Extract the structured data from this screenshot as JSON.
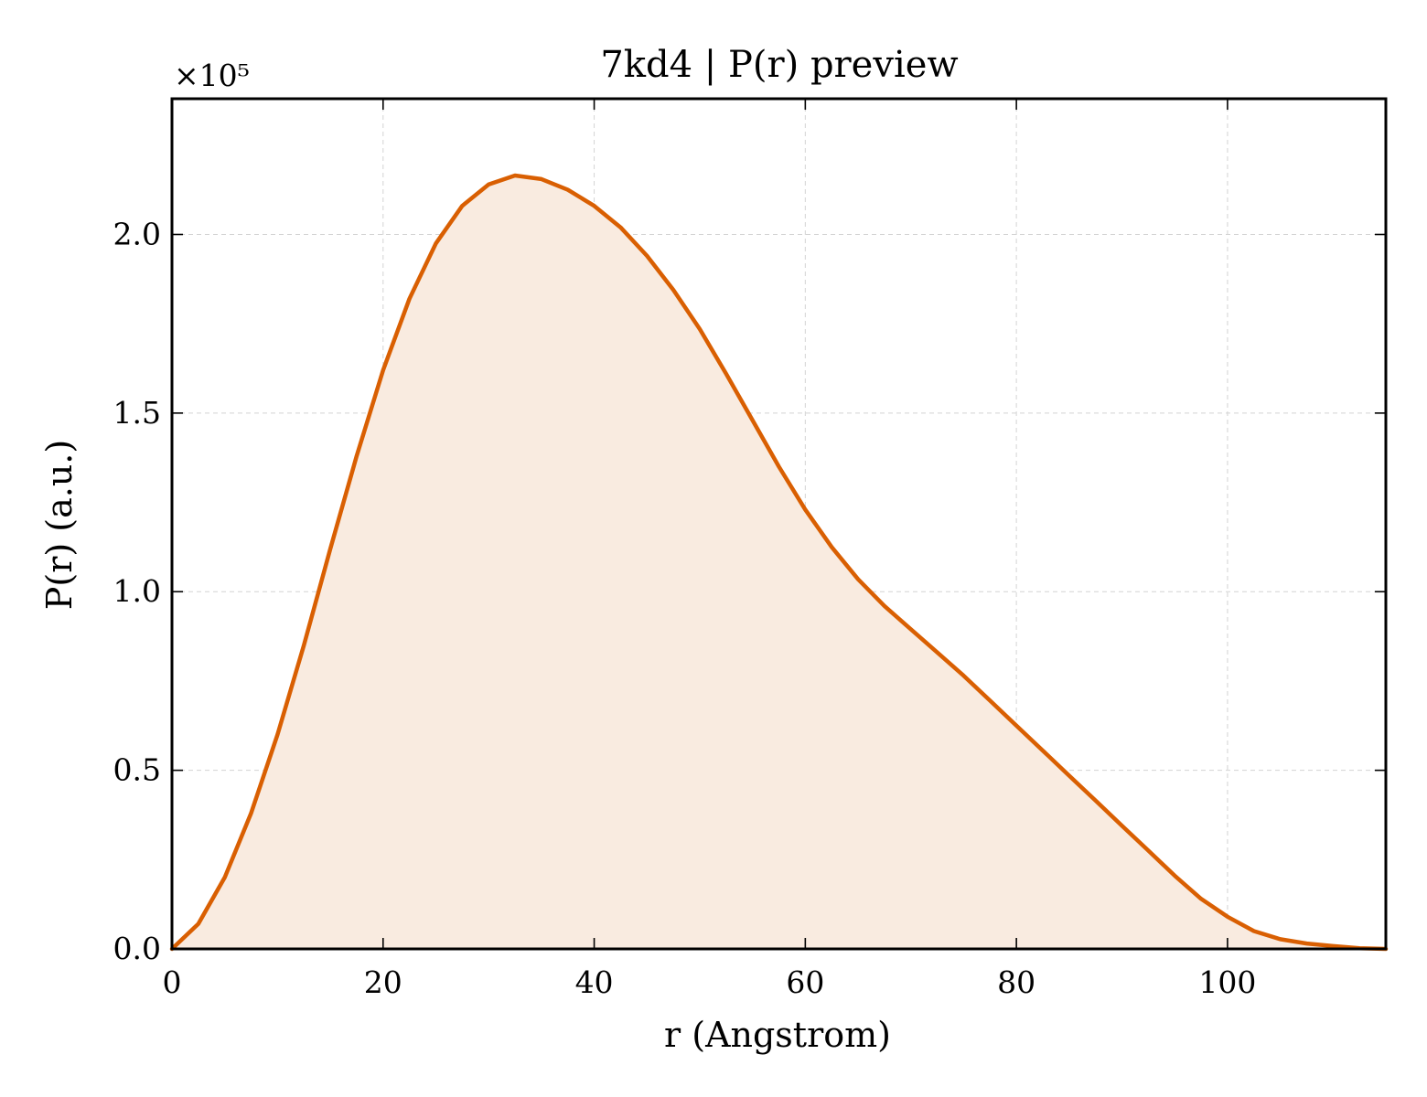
{
  "chart_data": {
    "type": "area",
    "title": "7kd4 | P(r) preview",
    "xlabel": "r (Angstrom)",
    "ylabel": "P(r) (a.u.)",
    "y_multiplier_label": "×10⁵",
    "y_scale_factor": 100000,
    "xlim": [
      0,
      115
    ],
    "ylim": [
      0,
      2.38
    ],
    "x_ticks": [
      0,
      20,
      40,
      60,
      80,
      100
    ],
    "x_tick_labels": [
      "0",
      "20",
      "40",
      "60",
      "80",
      "100"
    ],
    "y_ticks": [
      0,
      0.5,
      1.0,
      1.5,
      2.0
    ],
    "y_tick_labels": [
      "0.0",
      "0.5",
      "1.0",
      "1.5",
      "2.0"
    ],
    "grid": true,
    "line_color": "#d95f02",
    "fill_color": "#f9ebe0",
    "series": [
      {
        "x": [
          0,
          2.5,
          5,
          7.5,
          10,
          12.5,
          15,
          17.5,
          20,
          22.5,
          25,
          27.5,
          30,
          32.5,
          35,
          37.5,
          40,
          42.5,
          45,
          47.5,
          50,
          52.5,
          55,
          57.5,
          60,
          62.5,
          65,
          67.5,
          70,
          72.5,
          75,
          77.5,
          80,
          82.5,
          85,
          87.5,
          90,
          92.5,
          95,
          97.5,
          100,
          102.5,
          105,
          107.5,
          110,
          112.5,
          115
        ],
        "y": [
          0,
          0.07,
          0.2,
          0.38,
          0.6,
          0.85,
          1.12,
          1.38,
          1.62,
          1.82,
          1.975,
          2.08,
          2.14,
          2.165,
          2.155,
          2.125,
          2.08,
          2.02,
          1.94,
          1.845,
          1.735,
          1.61,
          1.48,
          1.35,
          1.23,
          1.125,
          1.035,
          0.96,
          0.895,
          0.83,
          0.765,
          0.695,
          0.625,
          0.555,
          0.485,
          0.415,
          0.345,
          0.275,
          0.205,
          0.14,
          0.09,
          0.05,
          0.027,
          0.015,
          0.008,
          0.002,
          0
        ]
      }
    ]
  }
}
